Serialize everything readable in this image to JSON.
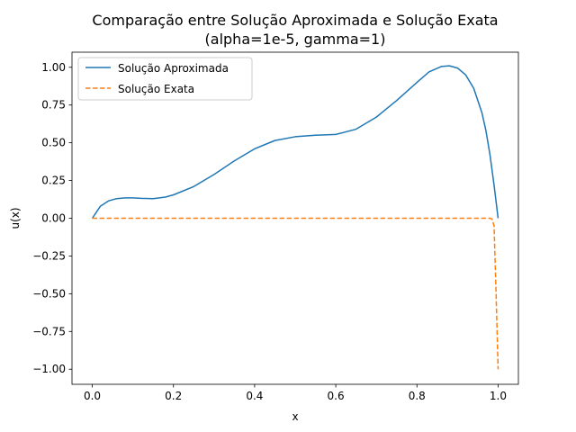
{
  "chart_data": {
    "type": "line",
    "title": "Comparação entre Solução Aproximada e Solução Exata",
    "subtitle": "(alpha=1e-5, gamma=1)",
    "xlabel": "x",
    "ylabel": "u(x)",
    "xlim": [
      -0.05,
      1.05
    ],
    "ylim": [
      -1.1,
      1.1
    ],
    "xticks": [
      0.0,
      0.2,
      0.4,
      0.6,
      0.8,
      1.0
    ],
    "xtick_labels": [
      "0.0",
      "0.2",
      "0.4",
      "0.6",
      "0.8",
      "1.0"
    ],
    "yticks": [
      1.0,
      0.75,
      0.5,
      0.25,
      0.0,
      -0.25,
      -0.5,
      -0.75,
      -1.0
    ],
    "ytick_labels": [
      "1.00",
      "0.75",
      "0.50",
      "0.25",
      "0.00",
      "−0.25",
      "−0.50",
      "−0.75",
      "−1.00"
    ],
    "grid": false,
    "legend_position": "upper left",
    "series": [
      {
        "name": "Solução Aproximada",
        "color": "#1f77b4",
        "style": "solid",
        "x": [
          0.0,
          0.01,
          0.02,
          0.04,
          0.06,
          0.08,
          0.1,
          0.12,
          0.15,
          0.18,
          0.2,
          0.25,
          0.3,
          0.35,
          0.4,
          0.45,
          0.5,
          0.55,
          0.6,
          0.65,
          0.7,
          0.75,
          0.8,
          0.83,
          0.86,
          0.88,
          0.9,
          0.92,
          0.94,
          0.96,
          0.97,
          0.98,
          0.99,
          1.0
        ],
        "y": [
          0.0,
          0.04,
          0.08,
          0.115,
          0.13,
          0.135,
          0.135,
          0.132,
          0.13,
          0.14,
          0.155,
          0.21,
          0.29,
          0.38,
          0.46,
          0.515,
          0.54,
          0.55,
          0.555,
          0.59,
          0.67,
          0.78,
          0.9,
          0.97,
          1.005,
          1.01,
          0.995,
          0.95,
          0.86,
          0.7,
          0.58,
          0.42,
          0.22,
          0.0
        ]
      },
      {
        "name": "Solução Exata",
        "color": "#ff7f0e",
        "style": "dashed",
        "x": [
          0.0,
          0.1,
          0.2,
          0.3,
          0.4,
          0.5,
          0.6,
          0.7,
          0.8,
          0.9,
          0.95,
          0.97,
          0.98,
          0.985,
          0.99,
          0.995,
          1.0
        ],
        "y": [
          0.0,
          0.0,
          0.0,
          0.0,
          0.0,
          0.0,
          0.0,
          0.0,
          0.0,
          0.0,
          0.0,
          0.0,
          0.0,
          -0.005,
          -0.05,
          -0.5,
          -1.0
        ]
      }
    ]
  }
}
